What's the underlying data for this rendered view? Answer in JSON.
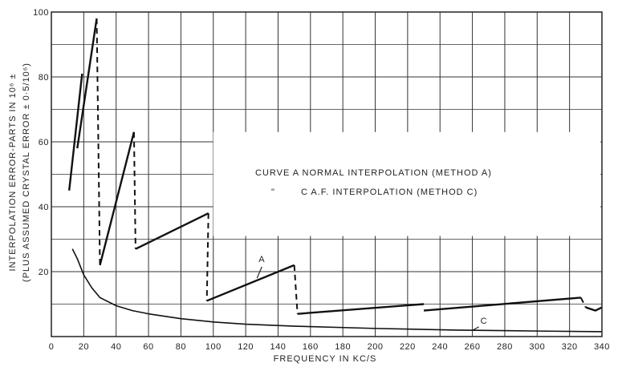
{
  "chart_data": {
    "type": "line",
    "xlabel": "FREQUENCY IN KC/S",
    "ylabel_line1": "INTERPOLATION ERROR-PARTS IN 10⁶ ±",
    "ylabel_line2": "(PLUS ASSUMED CRYSTAL ERROR ± 0·5/10⁶)",
    "xlim": [
      0,
      340
    ],
    "ylim": [
      0,
      100
    ],
    "x_ticks": [
      "0",
      "20",
      "40",
      "60",
      "80",
      "100",
      "120",
      "140",
      "160",
      "180",
      "200",
      "220",
      "240",
      "260",
      "280",
      "300",
      "320",
      "340"
    ],
    "y_ticks": [
      "20",
      "40",
      "60",
      "80",
      "100"
    ],
    "grid": true,
    "legend_line1": "CURVE A NORMAL INTERPOLATION (METHOD A)",
    "legend_line2_ditto": "\"",
    "legend_line2": "C A.F. INTERPOLATION (METHOD C)",
    "series": [
      {
        "name": "A",
        "label": "A",
        "solid_segments": [
          [
            [
              11,
              45
            ],
            [
              19,
              81
            ]
          ],
          [
            [
              16,
              58
            ],
            [
              28,
              98
            ]
          ],
          [
            [
              30,
              22
            ],
            [
              51,
              63
            ]
          ],
          [
            [
              52,
              27
            ],
            [
              97,
              38
            ]
          ],
          [
            [
              96,
              11
            ],
            [
              150,
              22
            ]
          ],
          [
            [
              152,
              7
            ],
            [
              230,
              10
            ]
          ],
          [
            [
              230,
              8
            ],
            [
              327,
              12
            ]
          ],
          [
            [
              330,
              9
            ],
            [
              336,
              8
            ],
            [
              340,
              9
            ]
          ]
        ],
        "dashed_segments": [
          [
            [
              28,
              98
            ],
            [
              30,
              22
            ]
          ],
          [
            [
              51,
              63
            ],
            [
              52,
              27
            ]
          ],
          [
            [
              97,
              38
            ],
            [
              96,
              11
            ]
          ],
          [
            [
              150,
              22
            ],
            [
              152,
              7
            ]
          ],
          [
            [
              327,
              12
            ],
            [
              330,
              9
            ]
          ]
        ]
      },
      {
        "name": "C",
        "label": "C",
        "values": [
          [
            13,
            27
          ],
          [
            16,
            24
          ],
          [
            20,
            19
          ],
          [
            25,
            15
          ],
          [
            30,
            12
          ],
          [
            40,
            9.5
          ],
          [
            50,
            8
          ],
          [
            60,
            7
          ],
          [
            80,
            5.5
          ],
          [
            100,
            4.5
          ],
          [
            120,
            3.8
          ],
          [
            150,
            3.2
          ],
          [
            200,
            2.5
          ],
          [
            250,
            2
          ],
          [
            300,
            1.7
          ],
          [
            340,
            1.5
          ]
        ]
      }
    ]
  }
}
